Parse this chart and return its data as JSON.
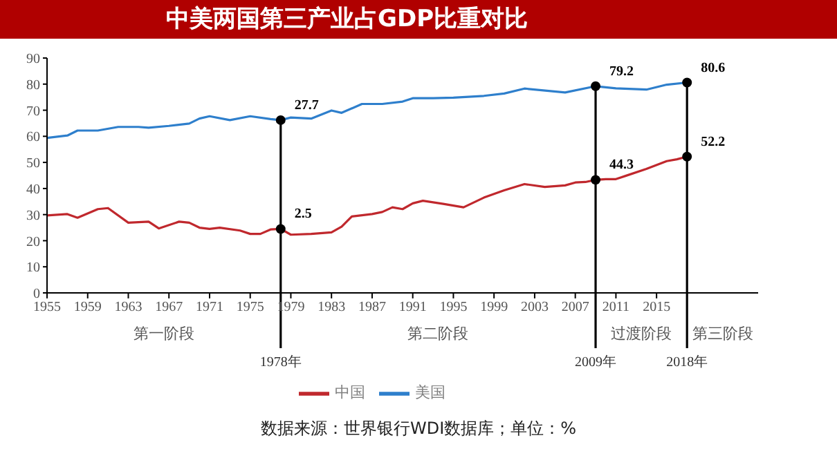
{
  "chart_data": {
    "type": "line",
    "title": "中美两国第三产业占GDP比重对比",
    "series": [
      {
        "name": "中国",
        "color": "#c0282d",
        "x": [
          1955,
          1957,
          1958,
          1960,
          1961,
          1963,
          1965,
          1966,
          1968,
          1969,
          1970,
          1971,
          1972,
          1974,
          1975,
          1976,
          1977,
          1978,
          1979,
          1981,
          1983,
          1984,
          1985,
          1987,
          1988,
          1989,
          1990,
          1991,
          1992,
          1994,
          1996,
          1998,
          2000,
          2002,
          2004,
          2006,
          2007,
          2008,
          2009,
          2010,
          2011,
          2012,
          2014,
          2016,
          2017,
          2018
        ],
        "values": [
          29.7,
          30.2,
          28.8,
          32.1,
          32.5,
          26.9,
          27.3,
          24.7,
          27.3,
          26.9,
          25,
          24.5,
          25,
          23.9,
          22.6,
          22.6,
          24.3,
          24.5,
          22.3,
          22.6,
          23.2,
          25.4,
          29.3,
          30.2,
          31,
          32.8,
          32.1,
          34.3,
          35.3,
          34.1,
          32.8,
          36.5,
          39.3,
          41.7,
          40.6,
          41.2,
          42.3,
          42.5,
          43.3,
          43.6,
          43.6,
          44.9,
          47.5,
          50.5,
          51.2,
          52.2
        ]
      },
      {
        "name": "美国",
        "color": "#2e7fcc",
        "x": [
          1955,
          1957,
          1958,
          1960,
          1962,
          1964,
          1965,
          1967,
          1969,
          1970,
          1971,
          1973,
          1975,
          1977,
          1978,
          1979,
          1981,
          1983,
          1984,
          1986,
          1988,
          1990,
          1991,
          1993,
          1995,
          1998,
          2000,
          2002,
          2006,
          2009,
          2011,
          2014,
          2016,
          2018
        ],
        "values": [
          59.4,
          60.3,
          62.2,
          62.2,
          63.6,
          63.6,
          63.3,
          64,
          64.9,
          66.8,
          67.7,
          66.2,
          67.7,
          66.6,
          66.2,
          67.2,
          66.8,
          69.9,
          69,
          72.4,
          72.4,
          73.3,
          74.6,
          74.6,
          74.8,
          75.5,
          76.4,
          78.3,
          76.8,
          79.2,
          78.4,
          77.9,
          79.8,
          80.6
        ]
      }
    ],
    "xlim": [
      1955,
      2025
    ],
    "xticks": [
      1955,
      1959,
      1963,
      1967,
      1971,
      1975,
      1979,
      1983,
      1987,
      1991,
      1995,
      1999,
      2003,
      2007,
      2011,
      2015
    ],
    "ylim": [
      0,
      90
    ],
    "yticks": [
      0,
      10,
      20,
      30,
      40,
      50,
      60,
      70,
      80,
      90
    ],
    "grid": false,
    "marker": "none",
    "legend": "bottom",
    "ref_lines": [
      {
        "axis": "x",
        "value": 1978,
        "label": "1978年",
        "color": "#000000"
      },
      {
        "axis": "x",
        "value": 2009,
        "label": "2009年",
        "color": "#000000"
      },
      {
        "axis": "x",
        "value": 2018,
        "label": "2018年",
        "color": "#000000"
      }
    ],
    "annotations": [
      {
        "text": "27.7",
        "x": 1978,
        "y": 66.2
      },
      {
        "text": "2.5",
        "x": 1978,
        "y": 24.5
      },
      {
        "text": "79.2",
        "x": 2009,
        "y": 79.2
      },
      {
        "text": "44.3",
        "x": 2009,
        "y": 43.3
      },
      {
        "text": "80.6",
        "x": 2018,
        "y": 80.6
      },
      {
        "text": "52.2",
        "x": 2018,
        "y": 52.2
      },
      "第一阶段",
      "第二阶段",
      "过渡阶段",
      "第三阶段",
      "数据来源：世界银行WDI数据库；单位：%"
    ]
  }
}
